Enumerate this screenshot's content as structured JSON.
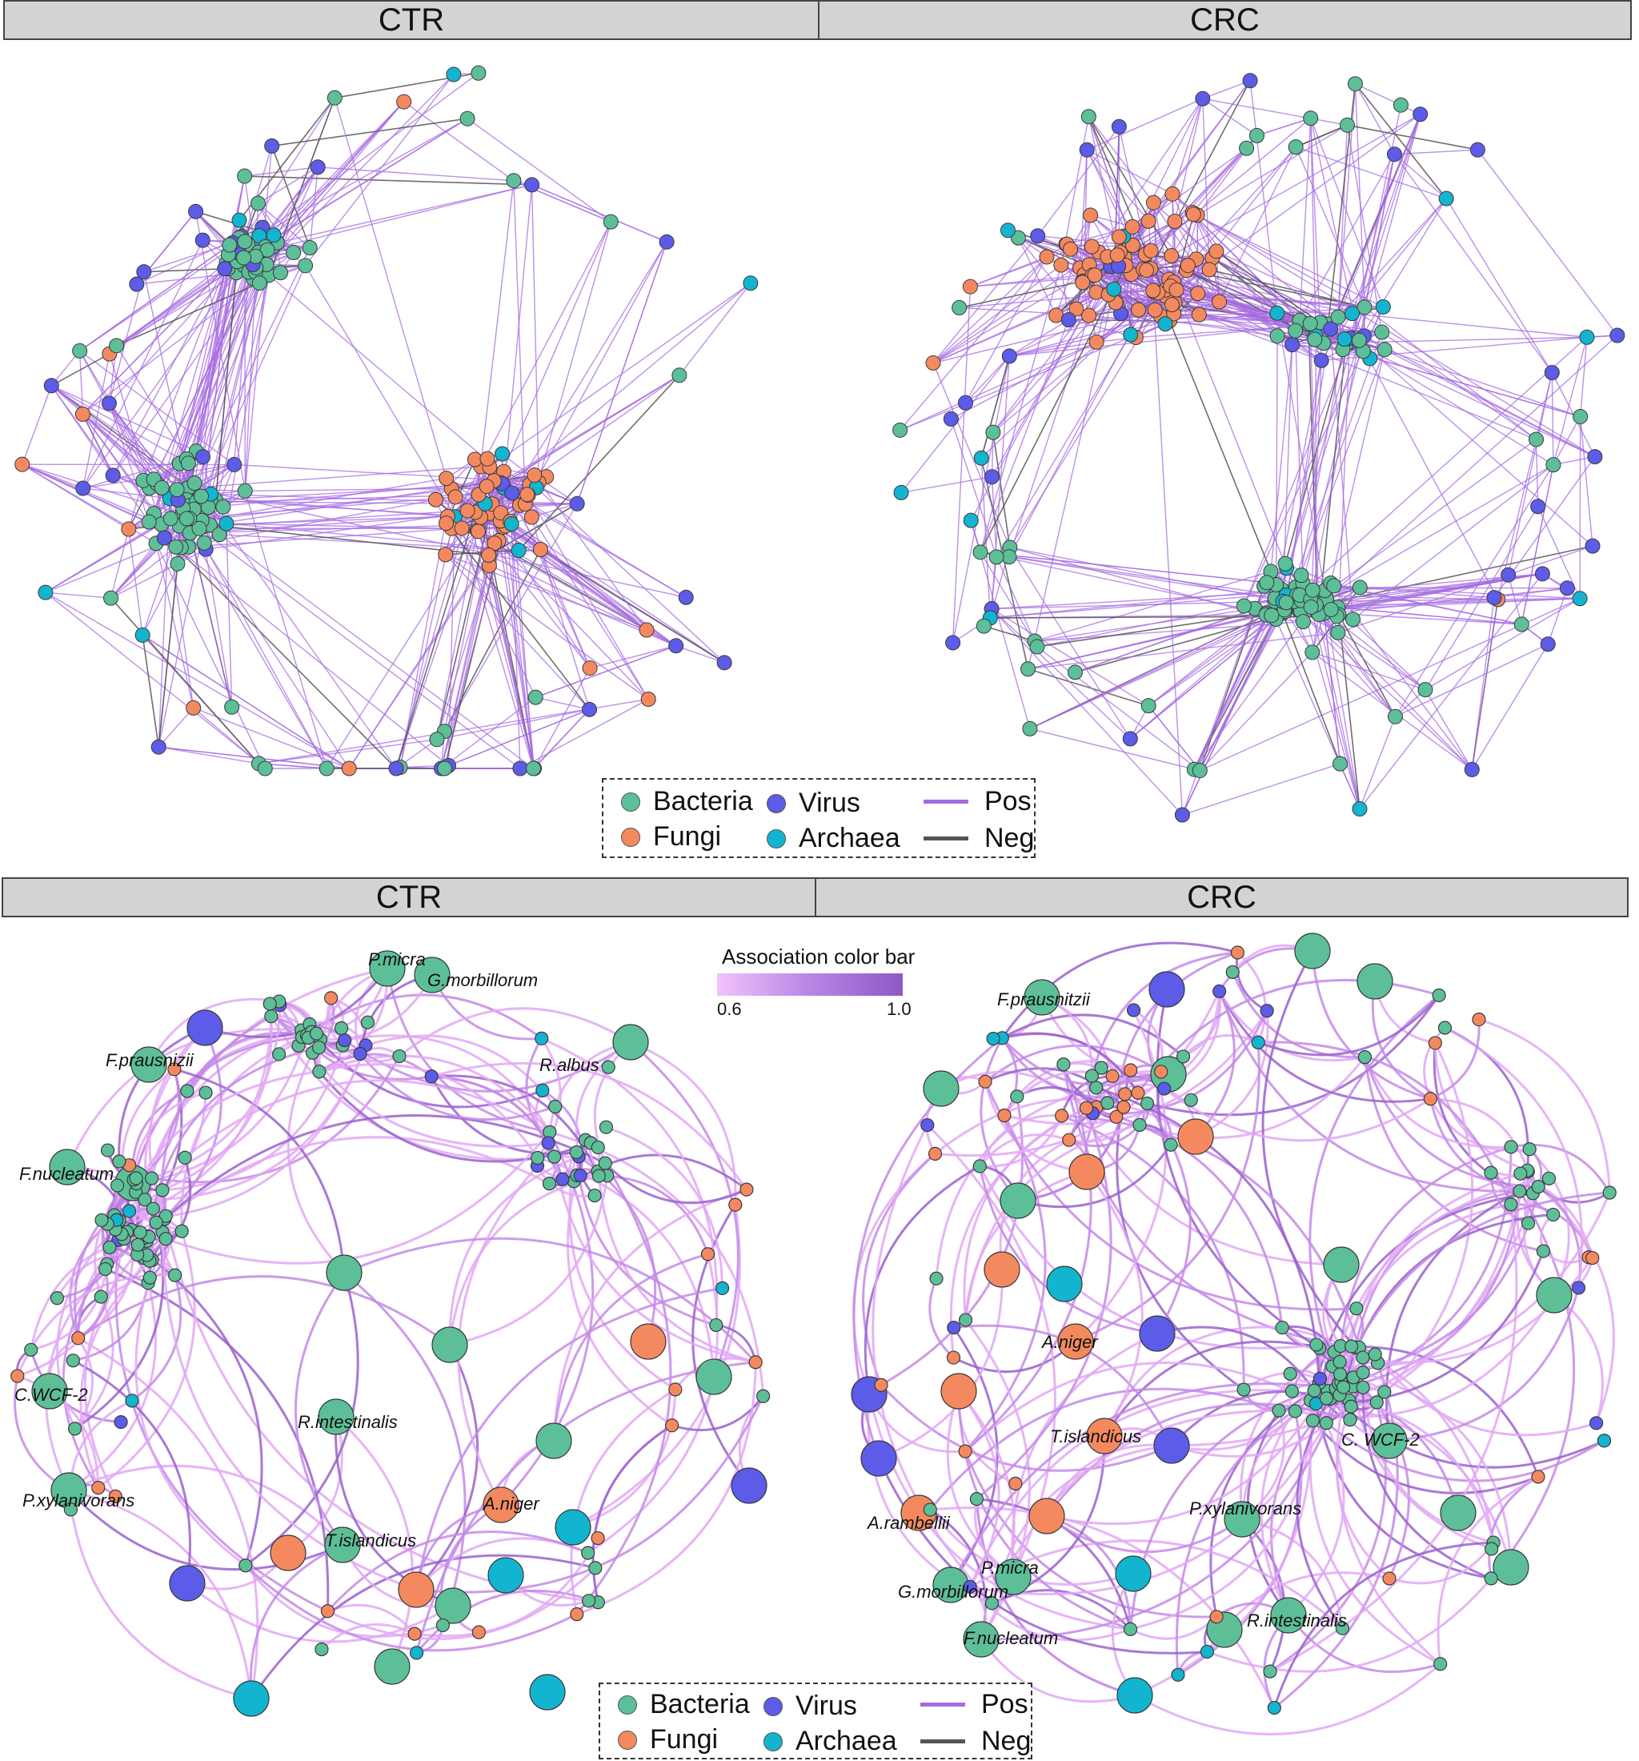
{
  "panels": {
    "top_left": "CTR",
    "top_right": "CRC",
    "bottom_left": "CTR",
    "bottom_right": "CRC"
  },
  "legend": {
    "bacteria": "Bacteria",
    "virus": "Virus",
    "pos": "Pos",
    "fungi": "Fungi",
    "archaea": "Archaea",
    "neg": "Neg"
  },
  "colors": {
    "bacteria": "#5cbf98",
    "fungi": "#f4895f",
    "virus": "#5c5ce8",
    "archaea": "#13b4cf",
    "pos": "#a56be0",
    "neg": "#555555",
    "cbar_low": "#f0b8f8",
    "cbar_high": "#9a5cc8"
  },
  "colorbar": {
    "title": "Association color bar",
    "min": "0.6",
    "max": "1.0"
  },
  "labels_ctr": [
    "P.micra",
    "G.morbillorum",
    "F.prausnizii",
    "R.albus",
    "F.nucleatum",
    "C.WCF-2",
    "R.intestinalis",
    "P.xylanivorans",
    "A.niger",
    "T.islandicus"
  ],
  "labels_crc": [
    "F.prausnitzii",
    "A.niger",
    "T.islandicus",
    "C. WCF-2",
    "P.xylanivorans",
    "A.rambellii",
    "P.micra",
    "G.morbillorum",
    "R.intestinalis",
    "F.nucleatum"
  ]
}
